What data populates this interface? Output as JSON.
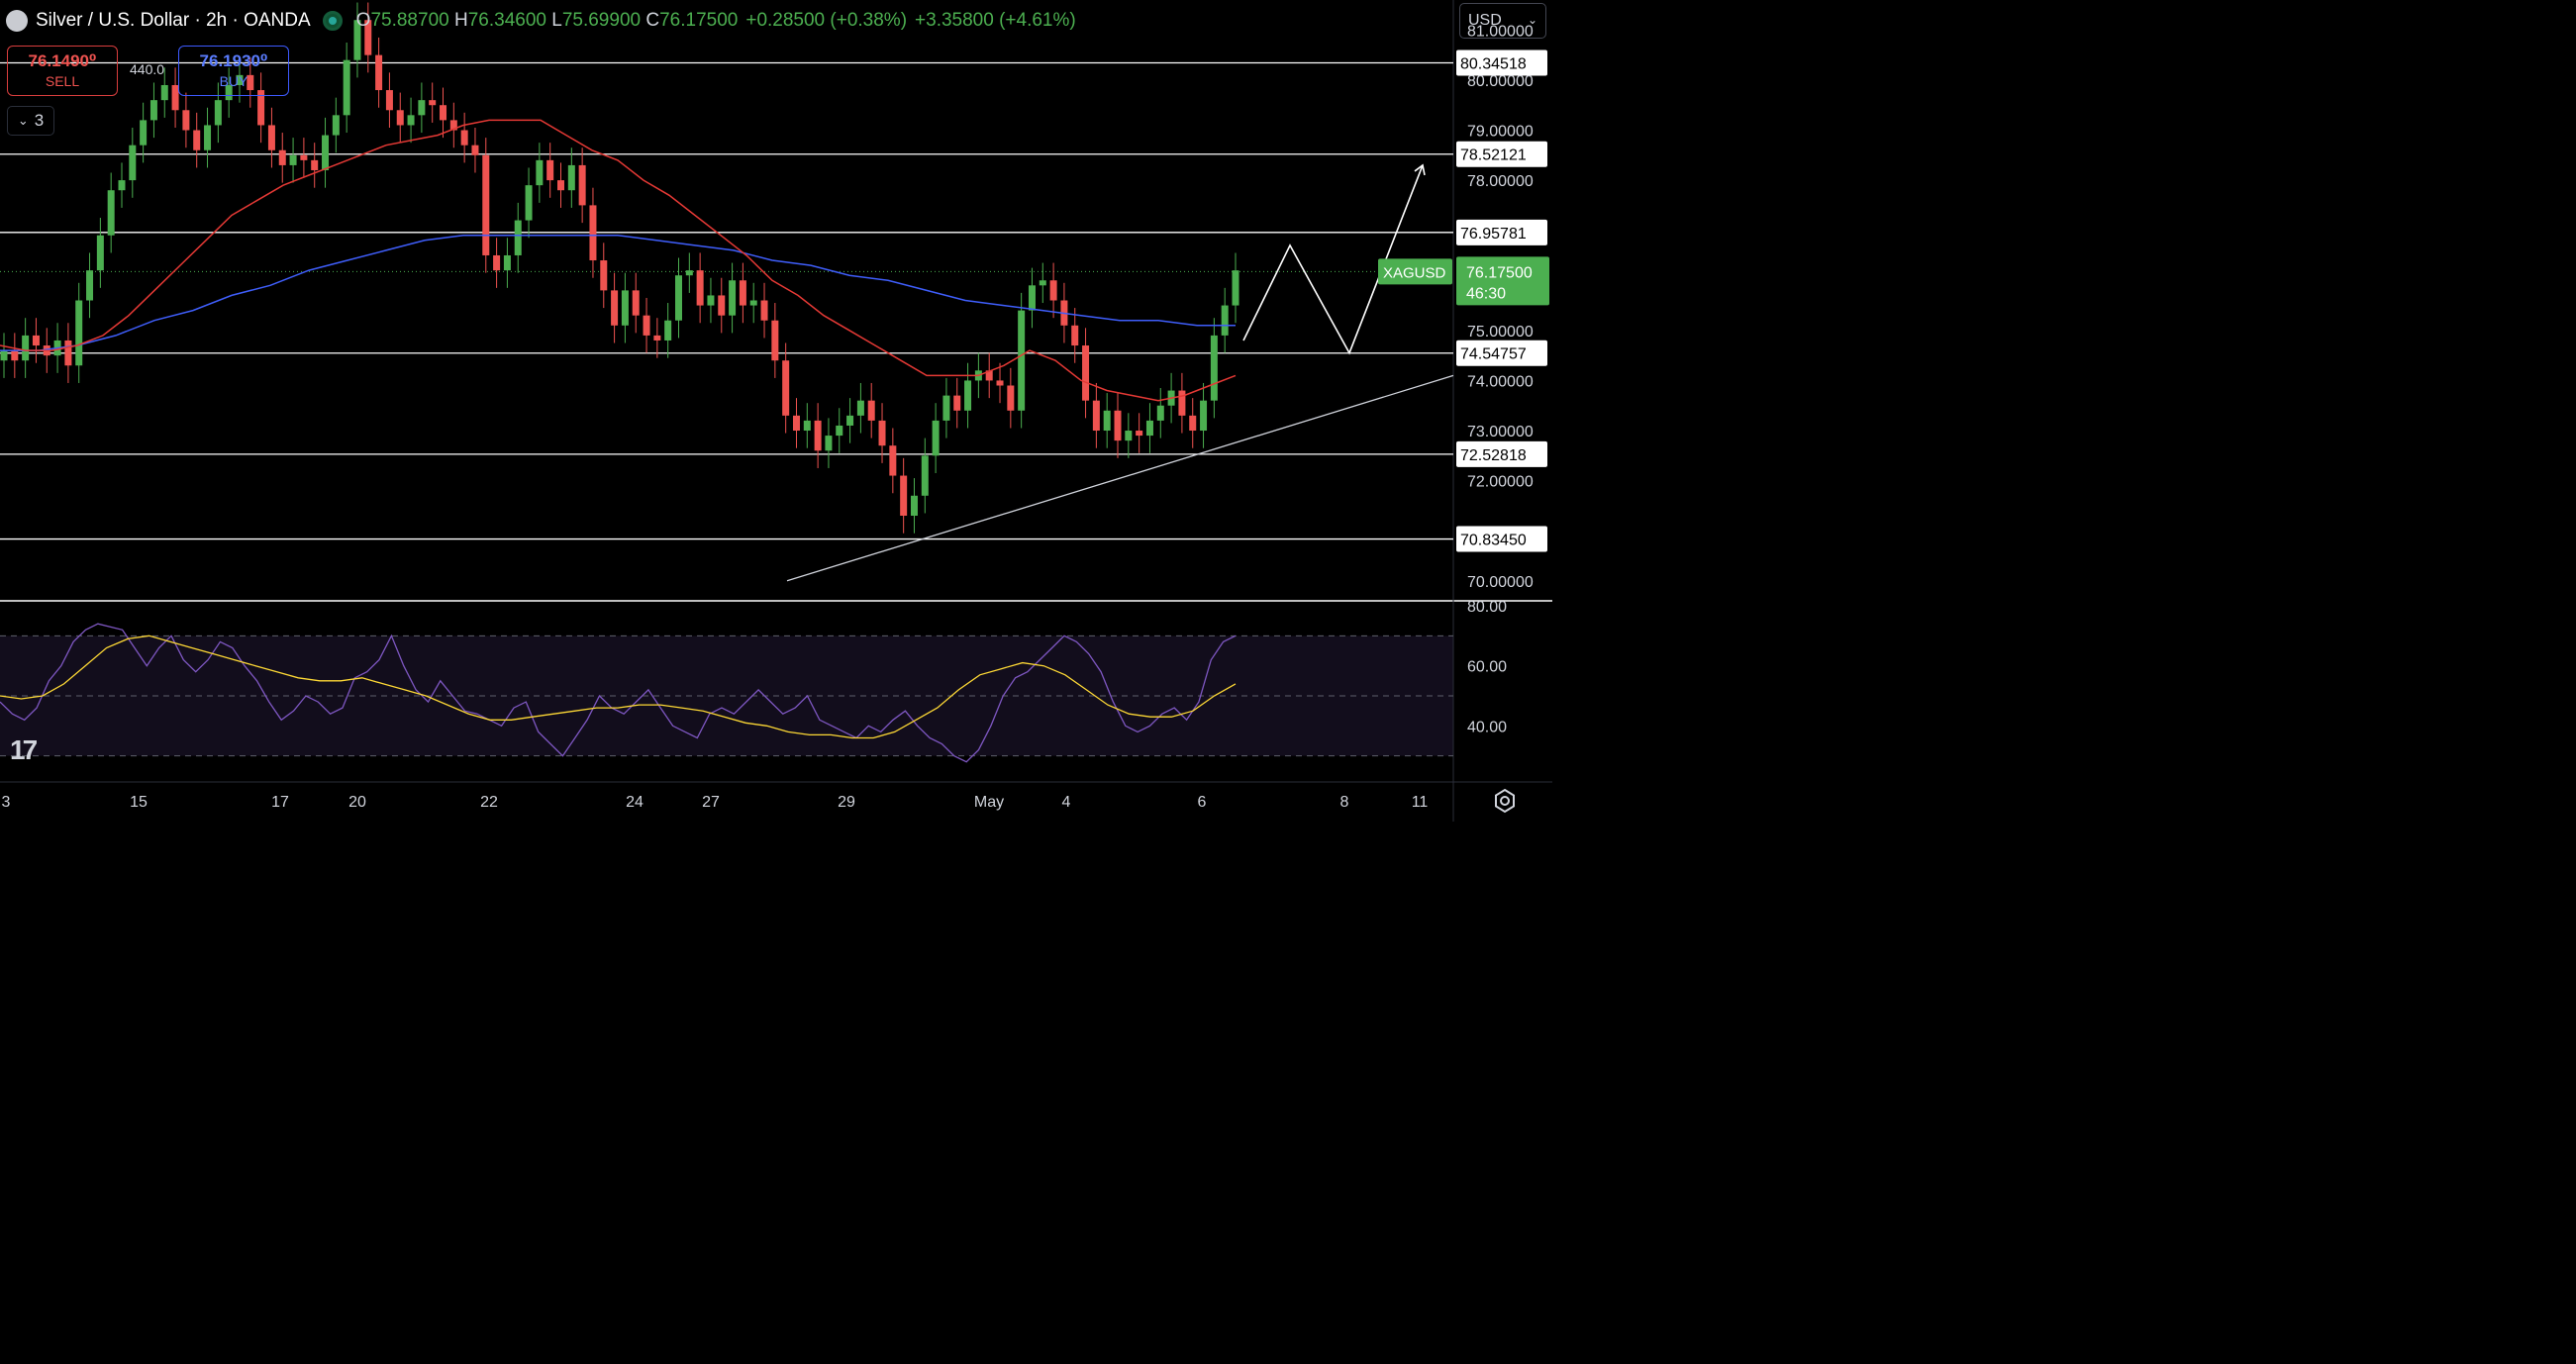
{
  "header": {
    "symbol_title": "Silver / U.S. Dollar · 2h · OANDA",
    "open_label": "O",
    "open": "75.88700",
    "high_label": "H",
    "high": "76.34600",
    "low_label": "L",
    "low": "75.69900",
    "close_label": "C",
    "close": "76.17500",
    "change": "+0.28500 (+0.38%)",
    "change2": "+3.35800 (+4.61%)"
  },
  "trade": {
    "sell_price": "76.1490⁰",
    "sell_label": "SELL",
    "buy_price": "76.1930⁰",
    "buy_label": "BUY",
    "spread": "440.0"
  },
  "indicators_collapse": "3",
  "currency": "USD",
  "colors": {
    "up": "#4caf50",
    "down": "#ef5350",
    "ma_fast": "#e53935",
    "ma_slow": "#3f5efb",
    "rsi": "#7e57c2",
    "rsi_ma": "#fdd835",
    "grid_line": "#ffffff",
    "accent": "#4caf50"
  },
  "icons": [
    "silver-coin-icon",
    "market-open-icon",
    "chevron-down-icon",
    "tradingview-logo-icon",
    "settings-gear-icon"
  ],
  "chart_data": [
    {
      "type": "candlestick",
      "symbol_label": "XAGUSD",
      "last_price": "76.17500",
      "countdown": "46:30",
      "y_ticks": [
        "81.00000",
        "80.00000",
        "79.00000",
        "78.00000",
        "75.00000",
        "74.00000",
        "73.00000",
        "72.00000",
        "70.00000"
      ],
      "x_ticks": [
        "3",
        "15",
        "17",
        "20",
        "22",
        "24",
        "27",
        "29",
        "May",
        "4",
        "6",
        "8",
        "11"
      ],
      "horizontal_levels": [
        "80.34518",
        "78.52121",
        "76.95781",
        "74.54757",
        "72.52818",
        "70.83450"
      ],
      "trendline": {
        "from": 70.0,
        "to": 74.1
      },
      "projection": [
        74.8,
        76.7,
        74.55,
        78.3
      ],
      "close_series": [
        74.6,
        74.4,
        74.9,
        74.7,
        74.5,
        74.8,
        74.3,
        75.6,
        76.2,
        76.9,
        77.8,
        78.0,
        78.7,
        79.2,
        79.6,
        79.9,
        79.4,
        79.0,
        78.6,
        79.1,
        79.6,
        79.9,
        80.1,
        79.8,
        79.1,
        78.6,
        78.3,
        78.5,
        78.4,
        78.2,
        78.9,
        79.3,
        80.4,
        81.2,
        80.5,
        79.8,
        79.4,
        79.1,
        79.3,
        79.6,
        79.5,
        79.2,
        79.0,
        78.7,
        78.5,
        76.5,
        76.2,
        76.5,
        77.2,
        77.9,
        78.4,
        78.0,
        77.8,
        78.3,
        77.5,
        76.4,
        75.8,
        75.1,
        75.8,
        75.3,
        74.9,
        74.8,
        75.2,
        76.1,
        76.2,
        75.5,
        75.7,
        75.3,
        76.0,
        75.5,
        75.6,
        75.2,
        74.4,
        73.3,
        73.0,
        73.2,
        72.6,
        72.9,
        73.1,
        73.3,
        73.6,
        73.2,
        72.7,
        72.1,
        71.3,
        71.7,
        72.5,
        73.2,
        73.7,
        73.4,
        74.0,
        74.2,
        74.0,
        73.9,
        73.4,
        75.4,
        75.9,
        76.0,
        75.6,
        75.1,
        74.7,
        73.6,
        73.0,
        73.4,
        72.8,
        73.0,
        72.9,
        73.2,
        73.5,
        73.8,
        73.3,
        73.0,
        73.6,
        74.9,
        75.5,
        76.2
      ],
      "ma_fast_series": [
        74.7,
        74.6,
        74.6,
        74.7,
        74.9,
        75.3,
        75.8,
        76.3,
        76.8,
        77.3,
        77.6,
        77.9,
        78.1,
        78.3,
        78.5,
        78.7,
        78.8,
        78.9,
        79.1,
        79.2,
        79.2,
        79.2,
        78.9,
        78.6,
        78.4,
        78.0,
        77.7,
        77.3,
        76.9,
        76.5,
        76.0,
        75.7,
        75.3,
        75.0,
        74.7,
        74.4,
        74.1,
        74.1,
        74.1,
        74.3,
        74.6,
        74.4,
        74.0,
        73.8,
        73.7,
        73.6,
        73.7,
        73.9,
        74.1
      ],
      "ma_slow_series": [
        74.6,
        74.6,
        74.7,
        74.9,
        75.2,
        75.4,
        75.7,
        75.9,
        76.2,
        76.4,
        76.6,
        76.8,
        76.9,
        76.9,
        76.9,
        76.9,
        76.9,
        76.8,
        76.7,
        76.6,
        76.4,
        76.3,
        76.1,
        76.0,
        75.8,
        75.6,
        75.5,
        75.4,
        75.3,
        75.2,
        75.2,
        75.1,
        75.1
      ],
      "y_range": [
        69.6,
        81.6
      ]
    },
    {
      "type": "line",
      "name": "RSI",
      "y_ticks": [
        "80.00",
        "60.00",
        "40.00"
      ],
      "bands": [
        70,
        50,
        30
      ],
      "y_range": [
        20,
        80
      ],
      "rsi_series": [
        48,
        44,
        42,
        46,
        55,
        60,
        68,
        72,
        74,
        73,
        72,
        66,
        60,
        66,
        70,
        62,
        58,
        62,
        68,
        66,
        60,
        55,
        48,
        42,
        45,
        50,
        48,
        44,
        46,
        56,
        58,
        62,
        70,
        60,
        52,
        48,
        55,
        50,
        45,
        44,
        42,
        40,
        46,
        48,
        38,
        34,
        30,
        36,
        42,
        50,
        46,
        44,
        48,
        52,
        46,
        40,
        38,
        36,
        44,
        46,
        44,
        48,
        52,
        48,
        44,
        46,
        50,
        42,
        40,
        38,
        36,
        40,
        38,
        42,
        45,
        40,
        36,
        34,
        30,
        28,
        32,
        40,
        50,
        56,
        58,
        62,
        66,
        70,
        68,
        64,
        58,
        48,
        40,
        38,
        40,
        44,
        46,
        42,
        48,
        62,
        68,
        70
      ],
      "rsi_ma_series": [
        50,
        49,
        50,
        54,
        60,
        66,
        69,
        70,
        68,
        66,
        64,
        62,
        60,
        58,
        56,
        55,
        55,
        56,
        54,
        52,
        50,
        47,
        44,
        42,
        42,
        43,
        44,
        45,
        46,
        46,
        47,
        47,
        46,
        45,
        43,
        41,
        40,
        38,
        37,
        37,
        36,
        36,
        38,
        42,
        46,
        52,
        57,
        59,
        61,
        60,
        57,
        52,
        47,
        44,
        43,
        43,
        45,
        50,
        54
      ]
    }
  ]
}
